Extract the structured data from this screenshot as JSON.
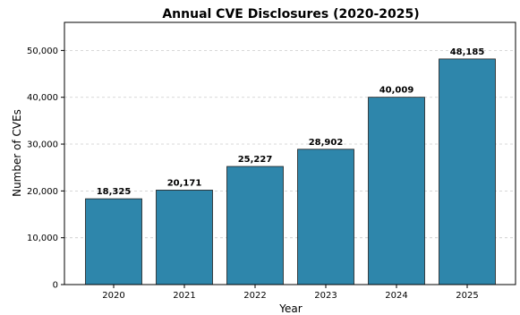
{
  "chart_data": {
    "type": "bar",
    "title": "Annual CVE Disclosures (2020-2025)",
    "xlabel": "Year",
    "ylabel": "Number of CVEs",
    "categories": [
      "2020",
      "2021",
      "2022",
      "2023",
      "2024",
      "2025"
    ],
    "values": [
      18325,
      20171,
      25227,
      28902,
      40009,
      48185
    ],
    "data_labels": [
      "18,325",
      "20,171",
      "25,227",
      "28,902",
      "40,009",
      "48,185"
    ],
    "y_ticks": [
      0,
      10000,
      20000,
      30000,
      40000,
      50000
    ],
    "y_tick_labels": [
      "0",
      "10,000",
      "20,000",
      "30,000",
      "40,000",
      "50,000"
    ],
    "ylim": [
      0,
      56000
    ],
    "grid": "y-dashed",
    "legend": "none",
    "bar_color": "#2e86ab"
  }
}
